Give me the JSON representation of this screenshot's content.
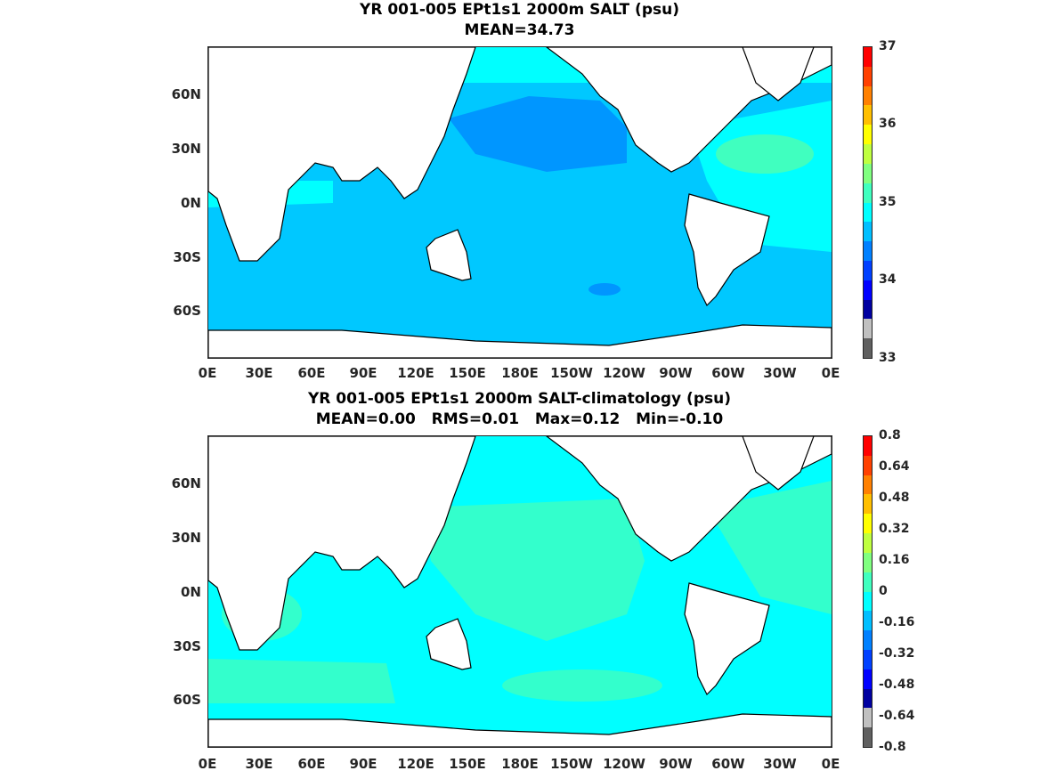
{
  "panels": [
    {
      "title_line1": "YR 001-005 EPt1s1 2000m SALT (psu)",
      "title_line2": "MEAN=34.73",
      "lat_ticks": [
        "60N",
        "30N",
        "0N",
        "30S",
        "60S"
      ],
      "lon_ticks": [
        "0E",
        "30E",
        "60E",
        "90E",
        "120E",
        "150E",
        "180E",
        "150W",
        "120W",
        "90W",
        "60W",
        "30W",
        "0E"
      ],
      "colorbar": {
        "ticks": [
          "37",
          "36",
          "35",
          "34",
          "33"
        ],
        "range": [
          33,
          37
        ]
      }
    },
    {
      "title_line1": "YR 001-005 EPt1s1 2000m SALT-climatology (psu)",
      "title_line2": "MEAN=0.00   RMS=0.01   Max=0.12   Min=-0.10",
      "lat_ticks": [
        "60N",
        "30N",
        "0N",
        "30S",
        "60S"
      ],
      "lon_ticks": [
        "0E",
        "30E",
        "60E",
        "90E",
        "120E",
        "150E",
        "180E",
        "150W",
        "120W",
        "90W",
        "60W",
        "30W",
        "0E"
      ],
      "colorbar": {
        "ticks": [
          "0.8",
          "0.64",
          "0.48",
          "0.32",
          "0.16",
          "0",
          "-0.16",
          "-0.32",
          "-0.48",
          "-0.64",
          "-0.8"
        ],
        "range": [
          -0.8,
          0.8
        ]
      }
    }
  ],
  "colors": {
    "ocean_cyan": "#00ffff",
    "ocean_lightblue": "#00c8ff",
    "ocean_blue": "#0096ff",
    "ocean_aqua": "#33ffcc",
    "land": "#ffffff",
    "coast": "#000000"
  },
  "colorbar_colors": [
    "#ff0000",
    "#ff4000",
    "#ff8000",
    "#ffbf00",
    "#ffff00",
    "#bfff40",
    "#80ff80",
    "#40ffbf",
    "#00ffff",
    "#00bfff",
    "#0080ff",
    "#0040ff",
    "#0000ff",
    "#0000a0",
    "#c0c0c0",
    "#606060"
  ]
}
